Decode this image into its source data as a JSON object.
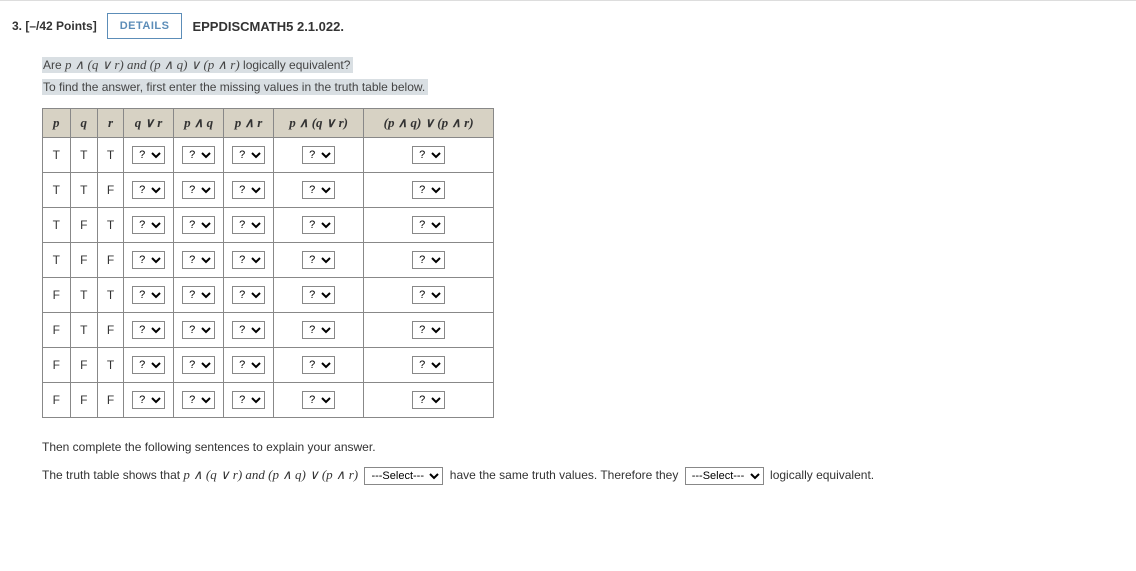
{
  "header": {
    "number_label": "3.",
    "points_label": "[–/42 Points]",
    "details_btn": "DETAILS",
    "source": "EPPDISCMATH5 2.1.022."
  },
  "prompt": {
    "line1_pre": "Are ",
    "line1_expr": "p ∧ (q ∨ r) and (p ∧ q) ∨ (p ∧ r)",
    "line1_post": " logically equivalent?",
    "line2": "To find the answer, first enter the missing values in the truth table below."
  },
  "table": {
    "headers": [
      "p",
      "q",
      "r",
      "q ∨ r",
      "p ∧ q",
      "p ∧ r",
      "p ∧ (q ∨ r)",
      "(p ∧ q) ∨ (p ∧ r)"
    ],
    "rows": [
      [
        "T",
        "T",
        "T"
      ],
      [
        "T",
        "T",
        "F"
      ],
      [
        "T",
        "F",
        "T"
      ],
      [
        "T",
        "F",
        "F"
      ],
      [
        "F",
        "T",
        "T"
      ],
      [
        "F",
        "T",
        "F"
      ],
      [
        "F",
        "F",
        "T"
      ],
      [
        "F",
        "F",
        "F"
      ]
    ],
    "dropdown_placeholder": "?",
    "col_widths": {
      "narrow": 22,
      "med": 56,
      "wide": 90,
      "xwide": 130
    }
  },
  "explain": {
    "sentence1": "Then complete the following sentences to explain your answer.",
    "sentence2_pre": "The truth table shows that ",
    "sentence2_expr": "p ∧ (q ∨ r) and (p ∧ q) ∨ (p ∧ r)",
    "select_placeholder": "---Select---",
    "sentence2_mid": " have the same truth values. Therefore they ",
    "sentence2_end": " logically equivalent."
  },
  "colors": {
    "header_bg": "#d7d2c4",
    "highlight_bg": "#d9dfe3",
    "details_border": "#5c8db8"
  }
}
